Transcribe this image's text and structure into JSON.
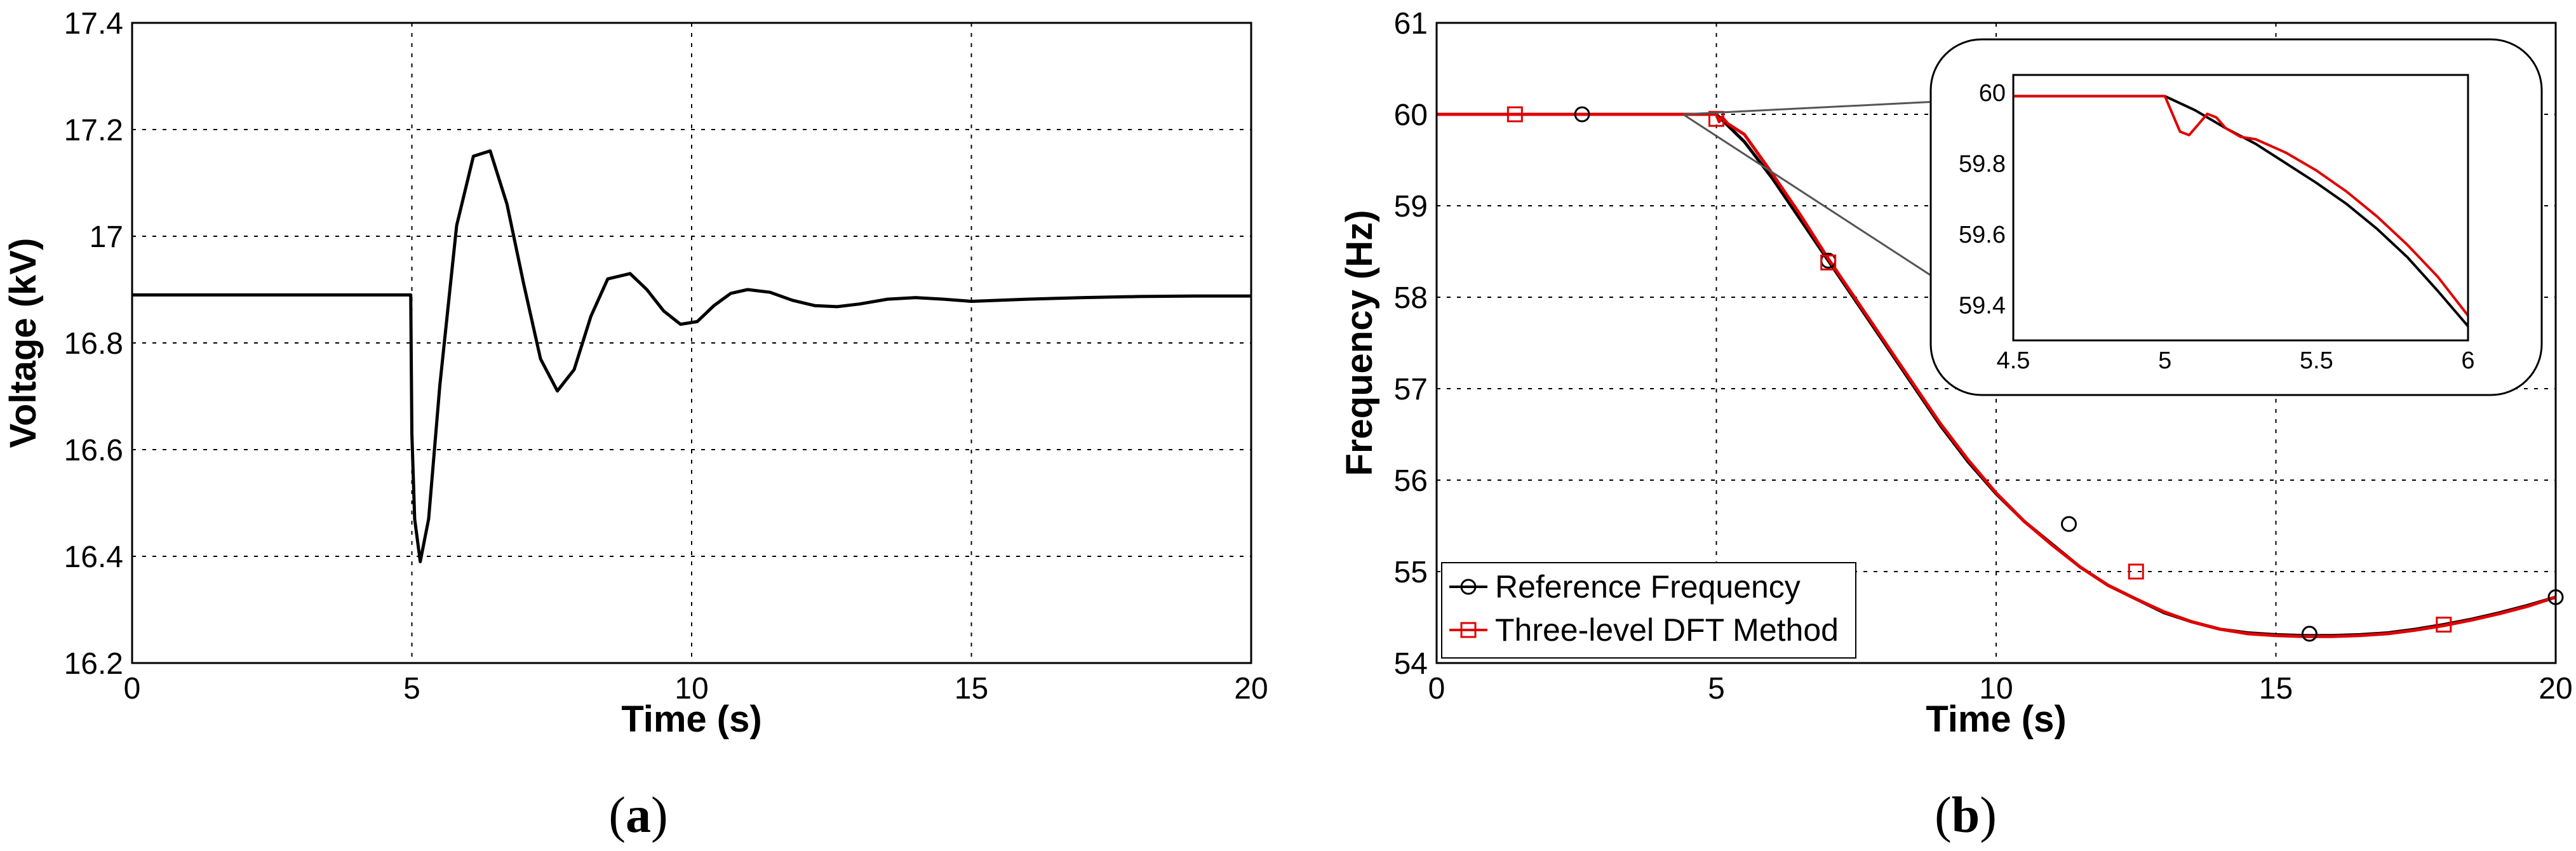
{
  "chart_data": [
    {
      "panel_label": "a",
      "type": "line",
      "xlabel": "Time (s)",
      "ylabel": "Voltage (kV)",
      "xlim": [
        0,
        20
      ],
      "ylim": [
        16.2,
        17.4
      ],
      "xticks": [
        0,
        5,
        10,
        15,
        20
      ],
      "yticks": [
        16.2,
        16.4,
        16.6,
        16.8,
        17,
        17.2,
        17.4
      ],
      "ytick_labels": [
        "16.2",
        "16.4",
        "16.6",
        "16.8",
        "17",
        "17.2",
        "17.4"
      ],
      "grid": true,
      "series": [
        {
          "color": "#000000",
          "x": [
            0,
            4.98,
            5.0,
            5.05,
            5.15,
            5.3,
            5.5,
            5.8,
            6.1,
            6.4,
            6.7,
            7.0,
            7.3,
            7.6,
            7.9,
            8.2,
            8.5,
            8.9,
            9.2,
            9.5,
            9.8,
            10.1,
            10.4,
            10.7,
            11.0,
            11.4,
            11.8,
            12.2,
            12.6,
            13.0,
            13.5,
            14.0,
            14.5,
            15.0,
            16.0,
            17.0,
            18.0,
            19.0,
            20.0
          ],
          "y": [
            16.89,
            16.89,
            16.63,
            16.47,
            16.39,
            16.47,
            16.72,
            17.02,
            17.15,
            17.16,
            17.06,
            16.91,
            16.77,
            16.71,
            16.75,
            16.85,
            16.92,
            16.93,
            16.9,
            16.86,
            16.835,
            16.84,
            16.87,
            16.893,
            16.9,
            16.895,
            16.88,
            16.87,
            16.868,
            16.873,
            16.882,
            16.885,
            16.882,
            16.878,
            16.882,
            16.885,
            16.887,
            16.888,
            16.888
          ]
        }
      ]
    },
    {
      "panel_label": "b",
      "type": "line",
      "xlabel": "Time (s)",
      "ylabel": "Frequency (Hz)",
      "xlim": [
        0,
        20
      ],
      "ylim": [
        54,
        61
      ],
      "xticks": [
        0,
        5,
        10,
        15,
        20
      ],
      "yticks": [
        54,
        55,
        56,
        57,
        58,
        59,
        60,
        61
      ],
      "grid": true,
      "legend_position": "bottom-left",
      "series": [
        {
          "name": "Reference Frequency",
          "color": "#000000",
          "marker": "circle",
          "x": [
            0,
            5.0,
            5.5,
            6.0,
            6.5,
            7.0,
            7.5,
            8.0,
            8.5,
            9.0,
            9.5,
            10.0,
            10.5,
            11.0,
            11.5,
            12.0,
            12.5,
            13.0,
            13.5,
            14.0,
            14.5,
            15.0,
            15.5,
            16.0,
            16.5,
            17.0,
            17.5,
            18.0,
            18.5,
            19.0,
            19.5,
            20.0
          ],
          "y": [
            60.0,
            60.0,
            59.7,
            59.3,
            58.85,
            58.4,
            57.95,
            57.5,
            57.05,
            56.6,
            56.2,
            55.85,
            55.55,
            55.3,
            55.05,
            54.85,
            54.7,
            54.55,
            54.45,
            54.37,
            54.33,
            54.31,
            54.3,
            54.3,
            54.31,
            54.33,
            54.37,
            54.42,
            54.48,
            54.55,
            54.63,
            54.72
          ],
          "marker_x": [
            2.6,
            7.0,
            11.3,
            15.6,
            20.0
          ],
          "marker_y": [
            60.0,
            58.4,
            55.52,
            54.32,
            54.72
          ]
        },
        {
          "name": "Three-level DFT Method",
          "color": "#e00000",
          "marker": "square",
          "x": [
            0,
            5.0,
            5.05,
            5.1,
            5.2,
            5.3,
            5.5,
            6.0,
            6.5,
            7.0,
            7.5,
            8.0,
            8.5,
            9.0,
            9.5,
            10.0,
            10.5,
            11.0,
            11.5,
            12.0,
            12.5,
            13.0,
            13.5,
            14.0,
            14.5,
            15.0,
            15.5,
            16.0,
            16.5,
            17.0,
            17.5,
            18.0,
            18.5,
            19.0,
            19.5,
            20.0
          ],
          "y": [
            60.0,
            60.0,
            59.92,
            59.97,
            59.9,
            59.86,
            59.78,
            59.35,
            58.9,
            58.42,
            57.97,
            57.52,
            57.07,
            56.62,
            56.22,
            55.86,
            55.55,
            55.29,
            55.05,
            54.85,
            54.7,
            54.56,
            54.45,
            54.37,
            54.32,
            54.3,
            54.29,
            54.29,
            54.3,
            54.32,
            54.36,
            54.41,
            54.47,
            54.54,
            54.62,
            54.72
          ],
          "marker_x": [
            1.4,
            5.0,
            7.0,
            12.5,
            18.0
          ],
          "marker_y": [
            60.0,
            59.95,
            58.38,
            55.0,
            54.42
          ]
        }
      ],
      "inset": {
        "xlim": [
          4.5,
          6
        ],
        "ylim": [
          59.3,
          60.05
        ],
        "xticks": [
          4.5,
          5,
          5.5,
          6
        ],
        "xtick_labels": [
          "4.5",
          "5",
          "5.5",
          "6"
        ],
        "yticks": [
          59.4,
          59.6,
          59.8,
          60
        ],
        "ytick_labels": [
          "59.4",
          "59.6",
          "59.8",
          "60"
        ],
        "series": [
          {
            "name": "Reference Frequency",
            "color": "#000000",
            "x": [
              4.5,
              5.0,
              5.1,
              5.2,
              5.3,
              5.4,
              5.5,
              5.6,
              5.7,
              5.8,
              5.9,
              6.0
            ],
            "y": [
              59.99,
              59.99,
              59.95,
              59.9,
              59.855,
              59.8,
              59.745,
              59.685,
              59.615,
              59.535,
              59.44,
              59.34
            ]
          },
          {
            "name": "Three-level DFT Method",
            "color": "#e00000",
            "x": [
              4.5,
              5.0,
              5.02,
              5.05,
              5.08,
              5.11,
              5.14,
              5.17,
              5.2,
              5.25,
              5.3,
              5.4,
              5.5,
              5.6,
              5.7,
              5.8,
              5.9,
              6.0
            ],
            "y": [
              59.99,
              59.99,
              59.95,
              59.89,
              59.88,
              59.91,
              59.94,
              59.93,
              59.9,
              59.875,
              59.868,
              59.83,
              59.78,
              59.72,
              59.65,
              59.57,
              59.48,
              59.37
            ]
          }
        ]
      }
    }
  ]
}
